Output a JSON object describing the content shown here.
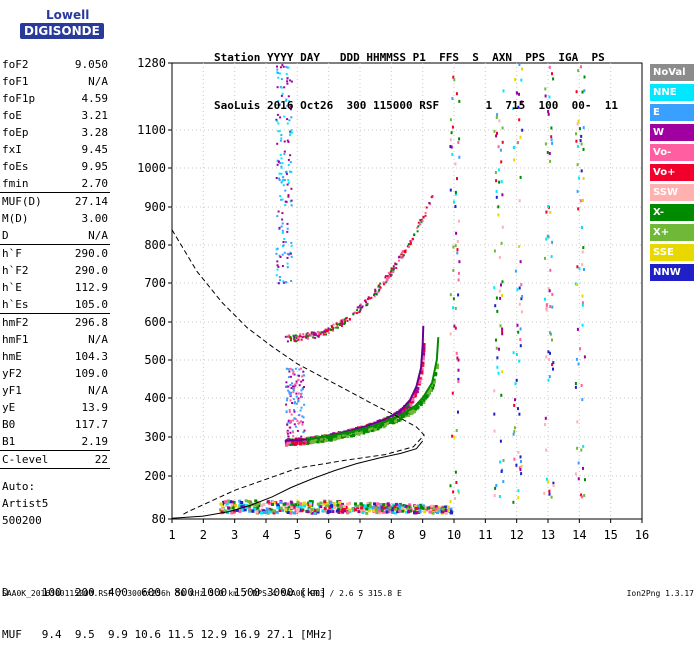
{
  "logo": {
    "line1": "Lowell",
    "line2": "DIGISONDE"
  },
  "header": {
    "labels": "Station YYYY DAY   DDD HHMMSS P1  FFS  S  AXN  PPS  IGA  PS",
    "values": "SaoLuis 2016 Oct26  300 115000 RSF       1  715  100  00-  11"
  },
  "params_group1": [
    {
      "label": "foF2",
      "value": "9.050"
    },
    {
      "label": "foF1",
      "value": "N/A"
    },
    {
      "label": "foF1p",
      "value": "4.59"
    },
    {
      "label": "foE",
      "value": "3.21"
    },
    {
      "label": "foEp",
      "value": "3.28"
    },
    {
      "label": "fxI",
      "value": "9.45"
    },
    {
      "label": "foEs",
      "value": "9.95"
    },
    {
      "label": "fmin",
      "value": "2.70"
    }
  ],
  "params_group2": [
    {
      "label": "MUF(D)",
      "value": "27.14"
    },
    {
      "label": "M(D)",
      "value": "3.00"
    },
    {
      "label": "D",
      "value": "N/A"
    }
  ],
  "params_group3": [
    {
      "label": "h`F",
      "value": "290.0"
    },
    {
      "label": "h`F2",
      "value": "290.0"
    },
    {
      "label": "h`E",
      "value": "112.9"
    },
    {
      "label": "h`Es",
      "value": "105.0"
    }
  ],
  "params_group4": [
    {
      "label": "hmF2",
      "value": "296.8"
    },
    {
      "label": "hmF1",
      "value": "N/A"
    },
    {
      "label": "hmE",
      "value": "104.3"
    },
    {
      "label": "yF2",
      "value": "109.0"
    },
    {
      "label": "yF1",
      "value": "N/A"
    },
    {
      "label": "yE",
      "value": "13.9"
    },
    {
      "label": "B0",
      "value": "117.7"
    },
    {
      "label": "B1",
      "value": "2.19"
    }
  ],
  "params_group5": [
    {
      "label": "C-level",
      "value": "22"
    }
  ],
  "auto": {
    "line1": "Auto:",
    "line2": "Artist5",
    "line3": "500200"
  },
  "legend": [
    {
      "label": "NoVal",
      "color": "#8c8c8c"
    },
    {
      "label": "NNE",
      "color": "#00e8ff"
    },
    {
      "label": "E",
      "color": "#3aa0ff"
    },
    {
      "label": "W",
      "color": "#a0009f"
    },
    {
      "label": "Vo-",
      "color": "#ff5fa0"
    },
    {
      "label": "Vo+",
      "color": "#f0002a"
    },
    {
      "label": "SSW",
      "color": "#ffb0b0"
    },
    {
      "label": "X-",
      "color": "#008a00"
    },
    {
      "label": "X+",
      "color": "#70b838"
    },
    {
      "label": "SSE",
      "color": "#e8d800"
    },
    {
      "label": "NNW",
      "color": "#2020c8"
    }
  ],
  "muf_table": {
    "d_line": "D     100  200  400  600  800 1000 1500 3000 [km]",
    "muf_line": "MUF   9.4  9.5  9.9 10.6 11.5 12.9 16.9 27.1 [MHz]"
  },
  "footer": {
    "left": "SAA0K_2016300115000.RSF / 300fx256h 50 kHz 5.0 km / DPS-4 SAA0K 903 / 2.6 S 315.8 E",
    "right": "Ion2Png 1.3.17"
  },
  "chart_data": {
    "type": "scatter",
    "x_ticks": [
      "1",
      "2",
      "3",
      "4",
      "5",
      "6",
      "7",
      "8",
      "9",
      "10",
      "11",
      "12",
      "13",
      "14",
      "15",
      "16"
    ],
    "y_ticks": [
      "80",
      "200",
      "300",
      "400",
      "500",
      "600",
      "700",
      "800",
      "900",
      "1000",
      "1100",
      "1280"
    ],
    "xlim": [
      1,
      16
    ],
    "ylim": [
      80,
      1280
    ],
    "y_scale": "non-linear (80 and 1280 endpoints)",
    "grid": true,
    "legend_position": "right",
    "lines": {
      "trace_virtual_height": [
        [
          1.0,
          82
        ],
        [
          2.0,
          88
        ],
        [
          2.8,
          100
        ],
        [
          3.5,
          118
        ],
        [
          4.2,
          142
        ],
        [
          4.8,
          168
        ],
        [
          5.5,
          193
        ],
        [
          6.2,
          214
        ],
        [
          6.9,
          232
        ],
        [
          7.6,
          246
        ],
        [
          8.3,
          258
        ],
        [
          8.8,
          270
        ],
        [
          9.0,
          290
        ]
      ],
      "trace_o_mode": [
        [
          4.6,
          290
        ],
        [
          5.2,
          293
        ],
        [
          5.8,
          300
        ],
        [
          6.5,
          312
        ],
        [
          7.2,
          328
        ],
        [
          7.8,
          345
        ],
        [
          8.3,
          368
        ],
        [
          8.6,
          395
        ],
        [
          8.8,
          430
        ],
        [
          8.95,
          480
        ],
        [
          9.0,
          540
        ],
        [
          9.02,
          590
        ]
      ],
      "trace_x_mode": [
        [
          5.3,
          295
        ],
        [
          6.0,
          302
        ],
        [
          6.8,
          315
        ],
        [
          7.5,
          330
        ],
        [
          8.2,
          352
        ],
        [
          8.7,
          375
        ],
        [
          9.0,
          400
        ],
        [
          9.3,
          440
        ],
        [
          9.45,
          500
        ],
        [
          9.5,
          560
        ]
      ],
      "profile_dashed": [
        [
          1.0,
          840
        ],
        [
          1.8,
          730
        ],
        [
          2.6,
          650
        ],
        [
          3.4,
          585
        ],
        [
          4.2,
          535
        ],
        [
          5.0,
          490
        ],
        [
          5.8,
          455
        ],
        [
          6.6,
          420
        ],
        [
          7.4,
          385
        ],
        [
          8.2,
          352
        ],
        [
          8.8,
          326
        ],
        [
          9.05,
          305
        ],
        [
          8.7,
          275
        ],
        [
          7.8,
          255
        ],
        [
          6.5,
          240
        ],
        [
          5.0,
          220
        ],
        [
          3.0,
          160
        ],
        [
          2.0,
          120
        ],
        [
          1.5,
          100
        ],
        [
          1.3,
          90
        ]
      ]
    },
    "scatter_series": {
      "E_layer": {
        "x_range": [
          2.5,
          9.9
        ],
        "y_range": [
          100,
          135
        ]
      },
      "F_trace_dense": {
        "x_range": [
          4.5,
          9.4
        ],
        "y_range": [
          285,
          590
        ]
      },
      "multi_hop_trace": {
        "x_range": [
          4.6,
          9.3
        ],
        "y_range": [
          560,
          930
        ]
      },
      "upper_faint": {
        "x_range": [
          4.3,
          4.8
        ],
        "y_range": [
          700,
          1280
        ]
      },
      "columns": [
        10.0,
        11.4,
        12.0,
        13.0,
        14.0
      ]
    }
  }
}
